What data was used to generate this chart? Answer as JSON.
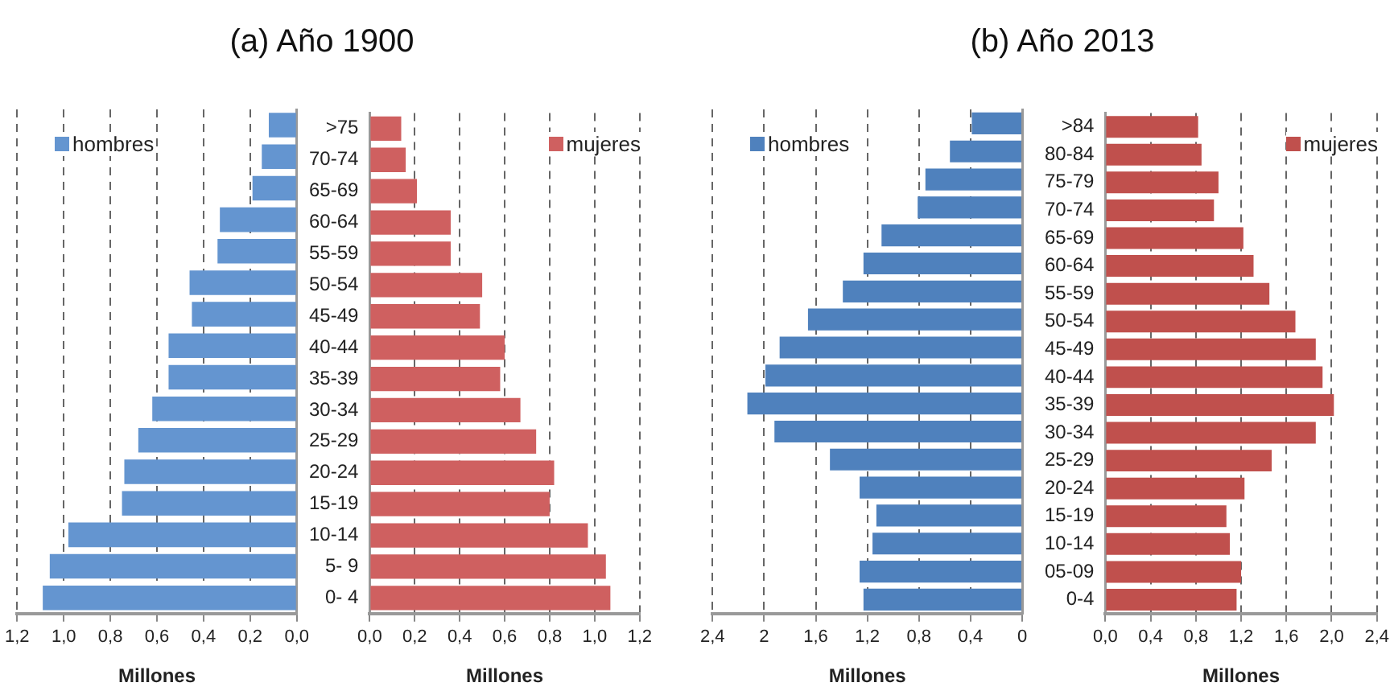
{
  "chart_data": [
    {
      "type": "bar",
      "title": "(a) Año 1900",
      "orientation": "horizontal",
      "xlabel": "Millones",
      "grid": "x",
      "legend": "top left",
      "tick_labels": "x",
      "categories": [
        null,
        null,
        null,
        null,
        null,
        null,
        null,
        null,
        null,
        null,
        null,
        null,
        null,
        null,
        null,
        null
      ],
      "series": [
        {
          "name": "hombres",
          "color": "#6495d0",
          "values": [
            0.12,
            0.15,
            0.19,
            0.33,
            0.34,
            0.46,
            0.45,
            0.55,
            0.55,
            0.62,
            0.68,
            0.74,
            0.75,
            0.98,
            1.06,
            1.09
          ]
        }
      ],
      "xlim": [
        1.2,
        0
      ],
      "xticks": [
        {
          "value": 1.2,
          "label": "1,2"
        },
        {
          "value": 1.0,
          "label": "1,0"
        },
        {
          "value": 0.8,
          "label": "0,8"
        },
        {
          "value": 0.6,
          "label": "0,6"
        },
        {
          "value": 0.4,
          "label": "0,4"
        },
        {
          "value": 0.2,
          "label": "0,2"
        },
        {
          "value": 0,
          "label": "0,0"
        }
      ]
    },
    {
      "type": "bar",
      "orientation": "horizontal",
      "xlabel": "Millones",
      "grid": "x",
      "legend": "top right",
      "categories": [
        ">75",
        "70-74",
        "65-69",
        "60-64",
        "55-59",
        "50-54",
        "45-49",
        "40-44",
        "35-39",
        "30-34",
        "25-29",
        "20-24",
        "15-19",
        "10-14",
        "5- 9",
        "0- 4"
      ],
      "series": [
        {
          "name": "mujeres",
          "color": "#cf6060",
          "values": [
            0.14,
            0.16,
            0.21,
            0.36,
            0.36,
            0.5,
            0.49,
            0.6,
            0.58,
            0.67,
            0.74,
            0.82,
            0.8,
            0.97,
            1.05,
            1.07
          ]
        }
      ],
      "xlim": [
        0,
        1.2
      ],
      "xticks": [
        {
          "value": 0,
          "label": "0,0"
        },
        {
          "value": 0.2,
          "label": "0,2"
        },
        {
          "value": 0.4,
          "label": "0,4"
        },
        {
          "value": 0.6,
          "label": "0,6"
        },
        {
          "value": 0.8,
          "label": "0,8"
        },
        {
          "value": 1.0,
          "label": "1,0"
        },
        {
          "value": 1.2,
          "label": "1,2"
        }
      ]
    },
    {
      "type": "bar",
      "title": "(b) Año 2013",
      "orientation": "horizontal",
      "xlabel": "Millones",
      "grid": "x",
      "legend": "top left",
      "tick_labels": "x",
      "categories": [
        null,
        null,
        null,
        null,
        null,
        null,
        null,
        null,
        null,
        null,
        null,
        null,
        null,
        null,
        null,
        null,
        null,
        null
      ],
      "series": [
        {
          "name": "hombres",
          "color": "#4f81bd",
          "values": [
            0.39,
            0.56,
            0.75,
            0.81,
            1.09,
            1.23,
            1.39,
            1.66,
            1.88,
            1.99,
            2.13,
            1.92,
            1.49,
            1.26,
            1.13,
            1.16,
            1.26,
            1.23
          ]
        }
      ],
      "xlim": [
        2.4,
        0
      ],
      "xticks": [
        {
          "value": 2.4,
          "label": "2,4"
        },
        2,
        {
          "value": 1.6,
          "label": "1,6"
        },
        {
          "value": 1.2,
          "label": "1,2"
        },
        {
          "value": 0.8,
          "label": "0,8"
        },
        {
          "value": 0.4,
          "label": "0,4"
        },
        0
      ]
    },
    {
      "type": "bar",
      "orientation": "horizontal",
      "xlabel": "Millones",
      "grid": "x",
      "legend": "top right",
      "categories": [
        ">84",
        "80-84",
        "75-79",
        "70-74",
        "65-69",
        "60-64",
        "55-59",
        "50-54",
        "45-49",
        "40-44",
        "35-39",
        "30-34",
        "25-29",
        "20-24",
        "15-19",
        "10-14",
        "05-09",
        "0-4"
      ],
      "series": [
        {
          "name": "mujeres",
          "color": "#c0504d",
          "values": [
            0.82,
            0.85,
            1.0,
            0.96,
            1.22,
            1.31,
            1.45,
            1.68,
            1.86,
            1.92,
            2.02,
            1.86,
            1.47,
            1.23,
            1.07,
            1.1,
            1.2,
            1.16
          ]
        }
      ],
      "xlim": [
        0,
        2.4
      ],
      "xticks": [
        {
          "value": 0,
          "label": "0,0"
        },
        {
          "value": 0.4,
          "label": "0,4"
        },
        {
          "value": 0.8,
          "label": "0,8"
        },
        {
          "value": 1.2,
          "label": "1,2"
        },
        {
          "value": 1.6,
          "label": "1,6"
        },
        {
          "value": 2.0,
          "label": "2,0"
        },
        {
          "value": 2.4,
          "label": "2,4"
        }
      ]
    }
  ]
}
